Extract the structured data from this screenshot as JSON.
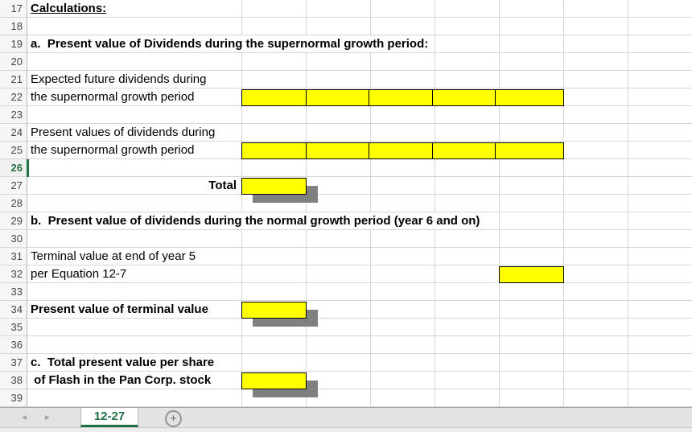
{
  "sheet": {
    "first_row": 17,
    "last_row": 39,
    "selected_row": 26,
    "row_numbers": [
      "17",
      "18",
      "19",
      "20",
      "21",
      "22",
      "23",
      "24",
      "25",
      "26",
      "27",
      "28",
      "29",
      "30",
      "31",
      "32",
      "33",
      "34",
      "35",
      "36",
      "37",
      "38",
      "39"
    ],
    "labels": [
      {
        "row": 17,
        "text": "Calculations:",
        "bold": true,
        "underline": true
      },
      {
        "row": 19,
        "text": "a.  Present value of Dividends during the supernormal growth period:",
        "bold": true
      },
      {
        "row": 21,
        "text": "Expected future dividends during"
      },
      {
        "row": 22,
        "text": "the supernormal growth period"
      },
      {
        "row": 24,
        "text": "Present values of dividends during"
      },
      {
        "row": 25,
        "text": "the supernormal growth period"
      },
      {
        "row": 27,
        "text": "Total",
        "bold": true,
        "align": "right"
      },
      {
        "row": 29,
        "text": "b.  Present value of dividends during the normal growth period (year 6 and on)",
        "bold": true
      },
      {
        "row": 31,
        "text": "Terminal value at end of year 5"
      },
      {
        "row": 32,
        "text": "per Equation 12-7"
      },
      {
        "row": 34,
        "text": "Present value of terminal value",
        "bold": true
      },
      {
        "row": 37,
        "text": "c.  Total present value per share",
        "bold": true
      },
      {
        "row": 38,
        "text": " of Flash in the Pan Corp. stock",
        "bold": true
      }
    ],
    "highlights": [
      {
        "row": 22,
        "col_start": 0,
        "cells": 5,
        "shadow": false
      },
      {
        "row": 25,
        "col_start": 0,
        "cells": 5,
        "shadow": false
      },
      {
        "row": 27,
        "col_start": 0,
        "cells": 1,
        "shadow": true
      },
      {
        "row": 32,
        "col_start": 4,
        "cells": 1,
        "shadow": false
      },
      {
        "row": 34,
        "col_start": 0,
        "cells": 1,
        "shadow": true
      },
      {
        "row": 38,
        "col_start": 0,
        "cells": 1,
        "shadow": true
      }
    ]
  },
  "tab_bar": {
    "active_tab": "12-27",
    "add_sheet_label": "+",
    "prev_icon": "◄",
    "next_icon": "►"
  },
  "colors": {
    "highlight_yellow": "#ffff00",
    "shadow_gray": "#808080",
    "accent_green": "#217346",
    "gridline": "#d6d6d6"
  }
}
